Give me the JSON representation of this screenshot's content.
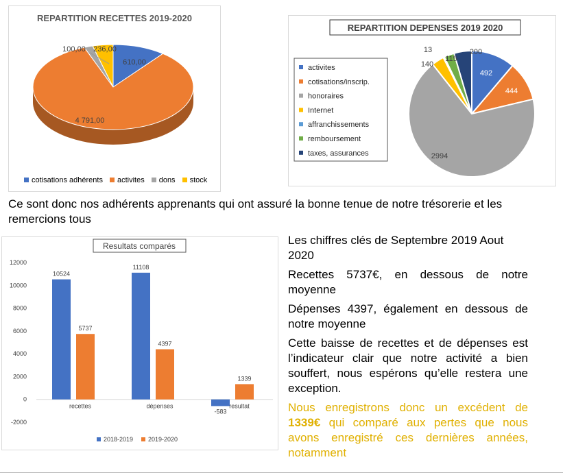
{
  "charts": {
    "recettes": {
      "title": "REPARTITION RECETTES 2019-2020",
      "legend": [
        "cotisations adhérents",
        "activites",
        "dons",
        "stock"
      ],
      "colors": [
        "#4472c4",
        "#ed7d31",
        "#a5a5a5",
        "#ffc000"
      ],
      "labels": [
        "610,00",
        "4 791,00",
        "100,00",
        "236,00"
      ]
    },
    "depenses": {
      "title": "REPARTITION DEPENSES 2019 2020",
      "legend": [
        "activites",
        "cotisations/inscrip.",
        "honoraires",
        "Internet",
        "affranchissements",
        "remboursement",
        "taxes, assurances"
      ],
      "colors": [
        "#4472c4",
        "#ed7d31",
        "#a5a5a5",
        "#ffc000",
        "#5b9bd5",
        "#70ad47",
        "#264478"
      ],
      "labels": [
        "492",
        "444",
        "2994",
        "140",
        "13",
        "115",
        "200"
      ]
    },
    "resultats": {
      "title": "Resultats comparés",
      "categories": [
        "recettes",
        "dépenses",
        "resultat"
      ],
      "series": [
        "2018-2019",
        "2019-2020"
      ],
      "colors": [
        "#4472c4",
        "#ed7d31"
      ],
      "yticks": [
        "12000",
        "10000",
        "8000",
        "6000",
        "4000",
        "2000",
        "0",
        "-2000"
      ],
      "labels": [
        "10524",
        "5737",
        "11108",
        "4397",
        "-583",
        "1339"
      ]
    }
  },
  "chart_data": [
    {
      "type": "pie",
      "title": "REPARTITION RECETTES 2019-2020",
      "categories": [
        "cotisations adhérents",
        "activites",
        "dons",
        "stock"
      ],
      "values": [
        610,
        4791,
        100,
        236
      ],
      "legend": "bottom"
    },
    {
      "type": "pie",
      "title": "REPARTITION DEPENSES 2019 2020",
      "categories": [
        "activites",
        "cotisations/inscrip.",
        "honoraires",
        "Internet",
        "affranchissements",
        "remboursement",
        "taxes, assurances"
      ],
      "values": [
        492,
        444,
        2994,
        140,
        13,
        115,
        200
      ],
      "legend": "left"
    },
    {
      "type": "bar",
      "title": "Resultats comparés",
      "categories": [
        "recettes",
        "dépenses",
        "resultat"
      ],
      "series": [
        {
          "name": "2018-2019",
          "values": [
            10524,
            11108,
            -583
          ]
        },
        {
          "name": "2019-2020",
          "values": [
            5737,
            4397,
            1339
          ]
        }
      ],
      "ylim": [
        -2000,
        12000
      ],
      "legend": "bottom"
    }
  ],
  "text": {
    "intro": "Ce sont donc nos adhérents apprenants qui ont assuré la bonne tenue de notre trésorerie et les remercions tous",
    "p1": "Les chiffres clés de Septembre 2019 Aout 2020",
    "p2": "Recettes 5737€, en dessous de notre moyenne",
    "p3": "Dépenses 4397, également en dessous de notre moyenne",
    "p4": "Cette baisse de recettes et de dépenses est l’indicateur clair que notre activité a bien souffert, nous espérons qu’elle restera une exception.",
    "p5_a": " Nous enregistrons donc un excédent de ",
    "p5_b": "1339€",
    "p5_c": " qui comparé aux pertes que nous avons enregistré ces dernières années, notamment"
  }
}
